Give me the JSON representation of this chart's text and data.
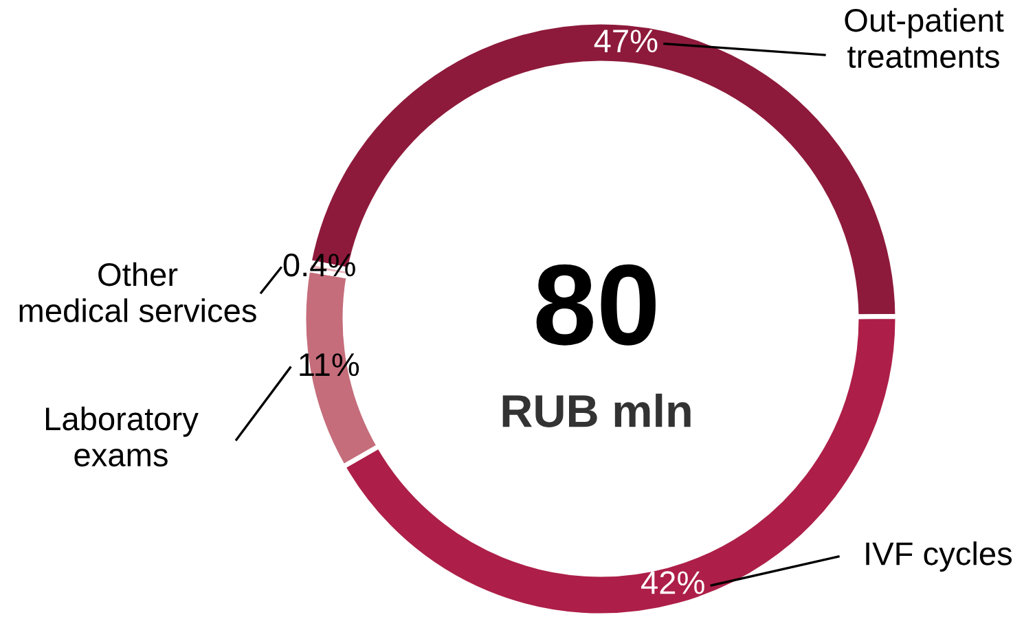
{
  "chart_data": {
    "type": "donut",
    "categories": [
      "Out-patient treatments",
      "IVF cycles",
      "Laboratory exams",
      "Other medical services"
    ],
    "values": [
      47,
      42,
      11,
      0.4
    ],
    "colors": [
      "#8e1a3b",
      "#ad1f48",
      "#c56d7b",
      "#e8b4bc"
    ],
    "value_labels": [
      "47%",
      "42%",
      "11%",
      "0.4%"
    ],
    "annotations": [
      "80",
      "RUB mln"
    ]
  }
}
